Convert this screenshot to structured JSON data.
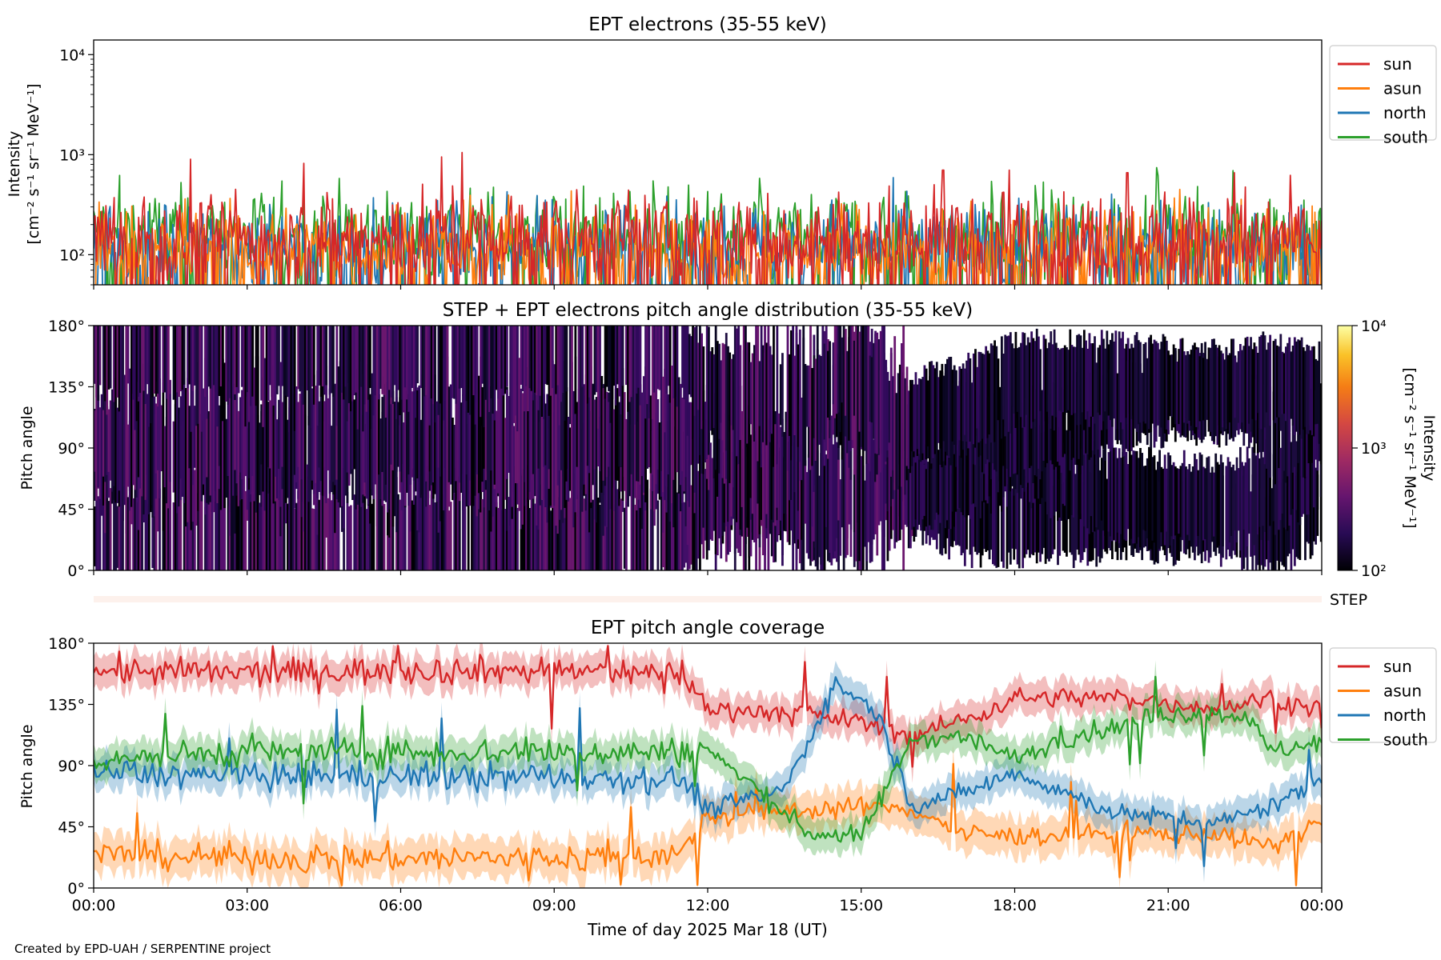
{
  "footer": "Created by EPD-UAH / SERPENTINE project",
  "colors": {
    "sun": "#d62728",
    "asun": "#ff7f0e",
    "north": "#1f77b4",
    "south": "#2ca02c",
    "step_bar": "#fdf1ec"
  },
  "chart_data": [
    {
      "id": "intensity",
      "type": "line",
      "title": "EPT electrons (35-55 keV)",
      "ylabel_lines": [
        "Intensity",
        "[cm⁻² s⁻¹ sr⁻¹ MeV⁻¹]"
      ],
      "xlabel": "",
      "yscale": "log",
      "ylim": [
        50,
        14000
      ],
      "yticks": [
        {
          "value": 100,
          "label": "10²"
        },
        {
          "value": 1000,
          "label": "10³"
        },
        {
          "value": 10000,
          "label": "10⁴"
        }
      ],
      "xlim_hours": [
        0,
        24
      ],
      "legend": "upper-right-outside",
      "series": [
        {
          "name": "sun",
          "typical": 150,
          "spread": 0.45,
          "peaks": [
            [
              1.9,
              900
            ],
            [
              4.1,
              820
            ],
            [
              6.8,
              950
            ],
            [
              7.2,
              1050
            ],
            [
              16.6,
              700
            ],
            [
              17.9,
              700
            ],
            [
              20.2,
              660
            ],
            [
              22.3,
              660
            ]
          ]
        },
        {
          "name": "asun",
          "typical": 110,
          "spread": 0.45,
          "peaks": []
        },
        {
          "name": "north",
          "typical": 120,
          "spread": 0.45,
          "peaks": []
        },
        {
          "name": "south",
          "typical": 160,
          "spread": 0.45,
          "peaks": [
            [
              0.5,
              620
            ],
            [
              20.8,
              620
            ]
          ]
        }
      ]
    },
    {
      "id": "pad",
      "type": "heatmap",
      "title": "STEP + EPT electrons pitch angle distribution (35-55 keV)",
      "ylabel": "Pitch angle",
      "ylim_deg": [
        0,
        180
      ],
      "yticks": [
        "0°",
        "45°",
        "90°",
        "135°",
        "180°"
      ],
      "colorbar": {
        "label_lines": [
          "Intensity",
          "[cm⁻² s⁻¹ sr⁻¹ MeV⁻¹]"
        ],
        "scale": "log",
        "range": [
          100,
          10000
        ],
        "ticks": [
          {
            "value": 100,
            "label": "10²"
          },
          {
            "value": 1000,
            "label": "10³"
          },
          {
            "value": 10000,
            "label": "10⁴"
          }
        ]
      }
    },
    {
      "id": "step",
      "type": "bar",
      "label": "STEP"
    },
    {
      "id": "coverage",
      "type": "area",
      "title": "EPT pitch angle coverage",
      "ylabel": "Pitch angle",
      "xlabel": "Time of day 2025 Mar 18 (UT)",
      "ylim_deg": [
        0,
        180
      ],
      "yticks": [
        "0°",
        "45°",
        "90°",
        "135°",
        "180°"
      ],
      "xticks": [
        "00:00",
        "03:00",
        "06:00",
        "09:00",
        "12:00",
        "15:00",
        "18:00",
        "21:00",
        "00:00"
      ],
      "legend": "upper-right-outside",
      "series": [
        {
          "name": "sun",
          "band": 12,
          "knots": [
            [
              0,
              160
            ],
            [
              3,
              158
            ],
            [
              6,
              160
            ],
            [
              9,
              160
            ],
            [
              11.5,
              158
            ],
            [
              12,
              132
            ],
            [
              14,
              128
            ],
            [
              15,
              122
            ],
            [
              16,
              112
            ],
            [
              17.5,
              130
            ],
            [
              18,
              140
            ],
            [
              20,
              140
            ],
            [
              22,
              132
            ],
            [
              23,
              140
            ],
            [
              24,
              130
            ]
          ]
        },
        {
          "name": "asun",
          "band": 14,
          "knots": [
            [
              0,
              25
            ],
            [
              3,
              22
            ],
            [
              6,
              22
            ],
            [
              9,
              22
            ],
            [
              11.5,
              25
            ],
            [
              12,
              52
            ],
            [
              14,
              58
            ],
            [
              15,
              60
            ],
            [
              16,
              58
            ],
            [
              17,
              40
            ],
            [
              18,
              38
            ],
            [
              20,
              40
            ],
            [
              22,
              40
            ],
            [
              23,
              30
            ],
            [
              24,
              50
            ]
          ]
        },
        {
          "name": "north",
          "band": 12,
          "knots": [
            [
              0,
              85
            ],
            [
              3,
              82
            ],
            [
              6,
              82
            ],
            [
              9,
              82
            ],
            [
              11.5,
              80
            ],
            [
              12,
              58
            ],
            [
              13.5,
              72
            ],
            [
              14.5,
              150
            ],
            [
              15.3,
              130
            ],
            [
              16,
              60
            ],
            [
              17,
              70
            ],
            [
              18,
              85
            ],
            [
              20,
              55
            ],
            [
              22,
              48
            ],
            [
              23,
              60
            ],
            [
              24,
              80
            ]
          ]
        },
        {
          "name": "south",
          "band": 12,
          "knots": [
            [
              0,
              95
            ],
            [
              3,
              100
            ],
            [
              6,
              100
            ],
            [
              9,
              100
            ],
            [
              11.5,
              100
            ],
            [
              12,
              102
            ],
            [
              14,
              40
            ],
            [
              15,
              38
            ],
            [
              16,
              110
            ],
            [
              17,
              112
            ],
            [
              18,
              95
            ],
            [
              19,
              110
            ],
            [
              21,
              128
            ],
            [
              22.5,
              128
            ],
            [
              23,
              100
            ],
            [
              24,
              108
            ]
          ]
        }
      ]
    }
  ]
}
